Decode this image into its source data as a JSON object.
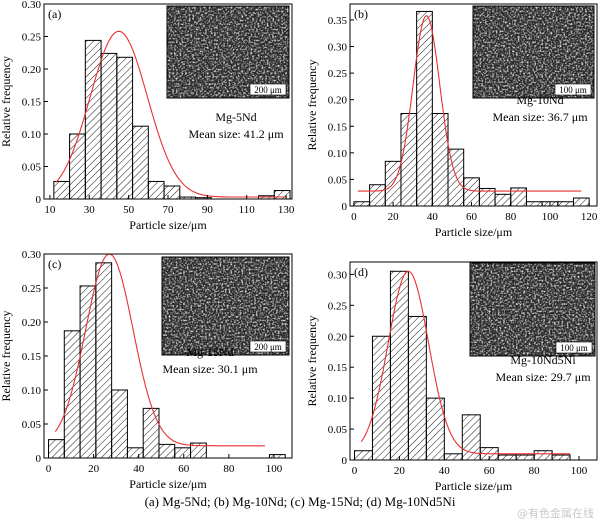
{
  "figure": {
    "caption": "(a) Mg-5Nd; (b)  Mg-10Nd; (c) Mg-15Nd; (d) Mg-10Nd5Ni",
    "watermark": "@有色金属在线"
  },
  "colors": {
    "fit_curve": "#e8312f",
    "axes": "#000000",
    "bars": "#000000"
  },
  "chart_data": [
    {
      "type": "bar",
      "panel_label": "(a)",
      "xlabel": "Particle size/μm",
      "ylabel": "Relative frequency",
      "xlim": [
        7,
        133
      ],
      "ylim": [
        0,
        0.3
      ],
      "xticks": [
        10,
        30,
        50,
        70,
        90,
        110,
        130
      ],
      "yticks": [
        0,
        0.05,
        0.1,
        0.15,
        0.2,
        0.25,
        0.3
      ],
      "ytick_labels": [
        "0",
        "0.05",
        "0.10",
        "0.15",
        "0.20",
        "0.25",
        "0.30"
      ],
      "bin_width": 8,
      "bin_centers": [
        16,
        24,
        32,
        40,
        48,
        56,
        64,
        72,
        80,
        88,
        96,
        104,
        112,
        120,
        128
      ],
      "values": [
        0.027,
        0.1,
        0.244,
        0.224,
        0.218,
        0.112,
        0.027,
        0.02,
        0.003,
        0.002,
        0.0,
        0.0,
        0.0,
        0.005,
        0.013
      ],
      "fit": {
        "mean": 45,
        "sigma": 14.5,
        "peak": 0.258,
        "baseline": 0.003,
        "x_range": [
          13,
          130
        ]
      },
      "inset_scale": "200 μm",
      "alloy": "Mg-5Nd",
      "mean_size": "Mean size: 41.2 μm",
      "grid": false
    },
    {
      "type": "bar",
      "panel_label": "(b)",
      "xlabel": "Particle size/μm",
      "ylabel": "Relative frequency",
      "xlim": [
        -2,
        124
      ],
      "ylim": [
        0,
        0.38
      ],
      "xticks": [
        0,
        20,
        40,
        60,
        80,
        100,
        120
      ],
      "yticks": [
        0,
        0.05,
        0.1,
        0.15,
        0.2,
        0.25,
        0.3,
        0.35
      ],
      "ytick_labels": [
        "0",
        "0.05",
        "0.10",
        "0.15",
        "0.20",
        "0.25",
        "0.30",
        "0.35"
      ],
      "bin_width": 8,
      "bin_centers": [
        4,
        12,
        20,
        28,
        36,
        44,
        52,
        60,
        68,
        76,
        84,
        92,
        100,
        108,
        116
      ],
      "values": [
        0.008,
        0.04,
        0.084,
        0.174,
        0.366,
        0.174,
        0.107,
        0.053,
        0.033,
        0.022,
        0.034,
        0.008,
        0.008,
        0.008,
        0.015
      ],
      "fit": {
        "mean": 37,
        "sigma": 6.8,
        "peak": 0.358,
        "baseline": 0.028,
        "x_range": [
          2,
          116
        ]
      },
      "inset_scale": "100 μm",
      "alloy": "Mg-10Nd",
      "mean_size": "Mean size: 36.7 μm",
      "grid": false
    },
    {
      "type": "bar",
      "panel_label": "(c)",
      "xlabel": "Particle size/μm",
      "ylabel": "Relative frequency",
      "xlim": [
        -2,
        108
      ],
      "ylim": [
        0,
        0.3
      ],
      "xticks": [
        0,
        20,
        40,
        60,
        80,
        100
      ],
      "yticks": [
        0,
        0.05,
        0.1,
        0.15,
        0.2,
        0.25,
        0.3
      ],
      "ytick_labels": [
        "0",
        "0.05",
        "0.10",
        "0.15",
        "0.20",
        "0.25",
        "0.30"
      ],
      "bin_width": 7,
      "bin_centers": [
        3.5,
        10.5,
        17.5,
        24.5,
        31.5,
        38.5,
        45.5,
        52.5,
        59.5,
        66.5,
        73.5,
        80.5,
        87.5,
        94.5,
        101.5
      ],
      "values": [
        0.027,
        0.187,
        0.253,
        0.287,
        0.1,
        0.015,
        0.073,
        0.02,
        0.015,
        0.022,
        0.0,
        0.0,
        0.0,
        0.0,
        0.005
      ],
      "fit": {
        "mean": 27,
        "sigma": 10.5,
        "peak": 0.3,
        "baseline": 0.018,
        "x_range": [
          3,
          96
        ]
      },
      "inset_scale": "200 μm",
      "alloy": "Mg-15Nd",
      "mean_size": "Mean size: 30.1 μm",
      "grid": false
    },
    {
      "type": "bar",
      "panel_label": "(d)",
      "xlabel": "Particle size/μm",
      "ylabel": "Relative frequency",
      "xlim": [
        -2,
        108
      ],
      "ylim": [
        0,
        0.32
      ],
      "xticks": [
        0,
        20,
        40,
        60,
        80,
        100
      ],
      "yticks": [
        0,
        0.05,
        0.1,
        0.15,
        0.2,
        0.25,
        0.3
      ],
      "ytick_labels": [
        "0",
        "0.05",
        "0.10",
        "0.15",
        "0.20",
        "0.25",
        "0.30"
      ],
      "bin_width": 8,
      "bin_centers": [
        4,
        12,
        20,
        28,
        36,
        44,
        52,
        60,
        68,
        76,
        84,
        92,
        100
      ],
      "values": [
        0.015,
        0.2,
        0.305,
        0.232,
        0.1,
        0.01,
        0.073,
        0.02,
        0.008,
        0.008,
        0.015,
        0.008,
        0.0
      ],
      "fit": {
        "mean": 24,
        "sigma": 9.0,
        "peak": 0.305,
        "baseline": 0.01,
        "x_range": [
          3,
          96
        ]
      },
      "inset_scale": "100 μm",
      "alloy": "Mg-10Nd5Ni",
      "mean_size": "Mean size: 29.7 μm",
      "grid": false
    }
  ]
}
